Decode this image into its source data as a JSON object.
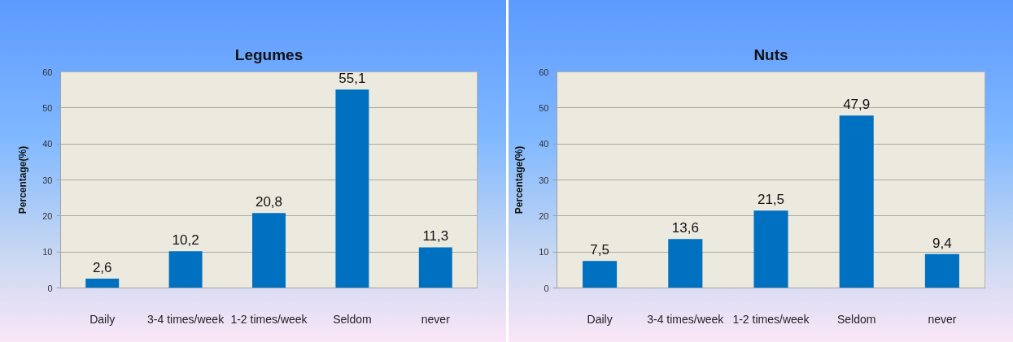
{
  "chart_data": [
    {
      "type": "bar",
      "title": "Legumes",
      "ylabel": "Percentage(%)",
      "categories": [
        "Daily",
        "3-4 times/week",
        "1-2 times/week",
        "Seldom",
        "never"
      ],
      "values": [
        2.6,
        10.2,
        20.8,
        55.1,
        11.3
      ],
      "value_labels": [
        "2,6",
        "10,2",
        "20,8",
        "55,1",
        "11,3"
      ],
      "color": "#0070c0",
      "ylim": [
        0,
        60
      ],
      "yticks": [
        0,
        10,
        20,
        30,
        40,
        50,
        60
      ],
      "grid": "y"
    },
    {
      "type": "bar",
      "title": "Nuts",
      "ylabel": "Percentage(%)",
      "categories": [
        "Daily",
        "3-4 times/week",
        "1-2 times/week",
        "Seldom",
        "never"
      ],
      "values": [
        7.5,
        13.6,
        21.5,
        47.9,
        9.4
      ],
      "value_labels": [
        "7,5",
        "13,6",
        "21,5",
        "47,9",
        "9,4"
      ],
      "color": "#0070c0",
      "ylim": [
        0,
        60
      ],
      "yticks": [
        0,
        10,
        20,
        30,
        40,
        50,
        60
      ],
      "grid": "y"
    }
  ]
}
